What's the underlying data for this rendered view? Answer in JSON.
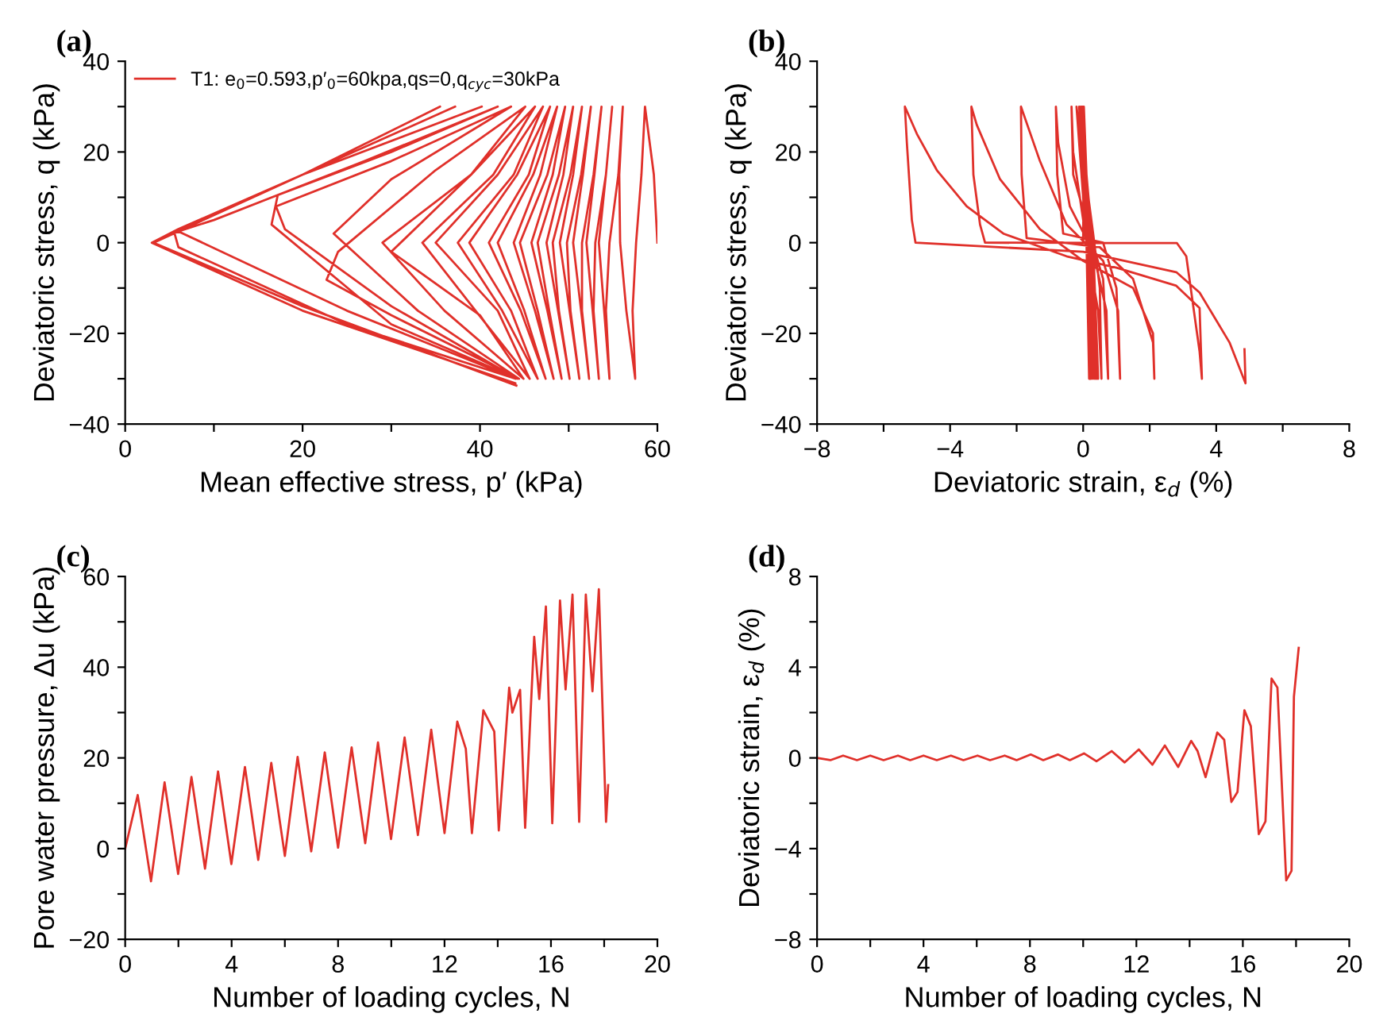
{
  "chart_data": [
    {
      "type": "line",
      "title": "(a)",
      "xlabel": "Mean effective stress, p′ (kPa)",
      "ylabel": "Deviatoric stress, q (kPa)",
      "legend": "top left",
      "grid": false,
      "xlim": [
        0,
        60
      ],
      "ylim": [
        -40,
        40
      ],
      "xticks": [
        0,
        {
          "value": 10,
          "label": null
        },
        20,
        {
          "value": 30,
          "label": null
        },
        40,
        {
          "value": 50,
          "label": null
        },
        60
      ],
      "yticks": [
        -40,
        {
          "value": -30,
          "label": null
        },
        -20,
        {
          "value": -10,
          "label": null
        },
        0,
        {
          "value": 10,
          "label": null
        },
        20,
        {
          "value": 30,
          "label": null
        },
        40
      ],
      "series": [
        {
          "name": "T1: e$_{0}$=0.593,p′$_{0}$=60kpa,qs=0,q$_{cyc}$=30kPa",
          "color": "#e0302a",
          "x": [
            60,
            59.6,
            58.6,
            58.2,
            57.6,
            57.2,
            57.5,
            56.5,
            55.8,
            55.7,
            56.1,
            55.6,
            54.6,
            54.2,
            54.6,
            54.0,
            53.4,
            54.2,
            54.9,
            54.2,
            53.0,
            52.8,
            53.4,
            52.7,
            52.0,
            52.9,
            53.7,
            52.8,
            51.5,
            51.5,
            52.3,
            51.4,
            50.5,
            51.6,
            52.5,
            51.4,
            49.8,
            50.2,
            51.2,
            50.1,
            49.0,
            50.5,
            51.5,
            50.2,
            48.2,
            48.9,
            50.1,
            48.8,
            47.5,
            49.4,
            50.5,
            48.9,
            46.5,
            47.8,
            49.2,
            47.6,
            45.8,
            48.2,
            49.6,
            47.6,
            44.5,
            46.5,
            48.3,
            46.2,
            43.8,
            46.8,
            48.7,
            46.0,
            42.0,
            45.0,
            47.4,
            44.6,
            41.0,
            45.5,
            47.9,
            44.2,
            38.8,
            43.5,
            46.5,
            42.5,
            37.5,
            43.8,
            47.1,
            42.0,
            35.0,
            42.0,
            45.6,
            39.5,
            33.5,
            41.5,
            46.2,
            39.0,
            30.0,
            40.0,
            44.9,
            36.0,
            29.0,
            39.0,
            45.1,
            35.0,
            24.0,
            22.7,
            30,
            44.4,
            33,
            23.5,
            30,
            43.5,
            30,
            17,
            18,
            30,
            44.2,
            30,
            16.5,
            17.2,
            30,
            42.0,
            27,
            10,
            6,
            25,
            44.0,
            25,
            6,
            5.5,
            20,
            40.2,
            20,
            6,
            3,
            20,
            44.0,
            20,
            3,
            20,
            37.2,
            20,
            3,
            20,
            44.0,
            20,
            3,
            20,
            35.5,
            20,
            3.2,
            20,
            44.1
          ],
          "values": [
            0,
            15,
            30,
            15,
            0,
            -15,
            -30,
            -15,
            0,
            15,
            30,
            15,
            0,
            -15,
            -30,
            -15,
            0,
            15,
            30,
            15,
            0,
            -15,
            -30,
            -15,
            0,
            15,
            30,
            15,
            0,
            -15,
            -30,
            -15,
            0,
            15,
            30,
            15,
            0,
            -15,
            -30,
            -15,
            0,
            15,
            30,
            15,
            0,
            -15,
            -30,
            -15,
            0,
            15,
            30,
            15,
            0,
            -15,
            -30,
            -15,
            0,
            15,
            30,
            15,
            0,
            -15,
            -30,
            -15,
            0,
            15,
            30,
            15,
            0,
            -15,
            -30,
            -15,
            0,
            15,
            30,
            15,
            0,
            -15,
            -30,
            -15,
            0,
            15,
            30,
            15,
            0,
            -15,
            -30,
            -15,
            0,
            15,
            30,
            15,
            -2,
            -16,
            -30,
            -15,
            0,
            15,
            30,
            16,
            -2,
            -8.2,
            -16,
            -30,
            -15,
            2,
            14,
            30,
            18,
            8,
            3,
            -14,
            -30,
            -18,
            4,
            10.5,
            20,
            30,
            18,
            5,
            2.5,
            -15,
            -30,
            -18,
            -1,
            2.5,
            15,
            30,
            15,
            3,
            0,
            -15,
            -31,
            -15,
            0,
            15,
            30,
            15,
            0,
            -15,
            -31,
            -15,
            0,
            15,
            30,
            15,
            0,
            -14,
            -31.5
          ]
        }
      ]
    },
    {
      "type": "line",
      "title": "(b)",
      "xlabel": "Deviatoric strain, ε$_{d}$ (%)",
      "ylabel": "Deviatoric stress, q (kPa)",
      "grid": false,
      "xlim": [
        -8,
        8
      ],
      "ylim": [
        -40,
        40
      ],
      "xticks": [
        -8,
        {
          "value": -6,
          "label": null
        },
        -4,
        {
          "value": -2,
          "label": null
        },
        0,
        {
          "value": 2,
          "label": null
        },
        4,
        {
          "value": 6,
          "label": null
        },
        8
      ],
      "yticks": [
        -40,
        {
          "value": -30,
          "label": null
        },
        -20,
        {
          "value": -10,
          "label": null
        },
        0,
        {
          "value": 10,
          "label": null
        },
        20,
        {
          "value": 30,
          "label": null
        },
        40
      ],
      "series": [
        {
          "color": "#e0302a",
          "x": [
            0,
            0.02,
            0.12,
            0.18,
            0.1,
            0.0,
            0.15,
            0.2,
            0.12,
            0.02,
            0.18,
            0.22,
            0.14,
            0.0,
            0.2,
            0.25,
            0.15,
            -0.02,
            0.22,
            0.3,
            0.15,
            -0.05,
            0.25,
            0.35,
            0.15,
            -0.08,
            0.28,
            0.4,
            0.12,
            -0.12,
            0.3,
            0.45,
            0.1,
            -0.2,
            0.3,
            0.5,
            0.55,
            0.45,
            0.1,
            -0.3,
            -0.35,
            -0.3,
            0.2,
            0.6,
            0.75,
            0.7,
            0.3,
            -0.4,
            -0.75,
            -0.82,
            -0.78,
            -0.6,
            0.6,
            1.0,
            1.11,
            1.05,
            0.6,
            -0.5,
            -1.3,
            -1.87,
            -1.85,
            -1.7,
            0.5,
            1.5,
            2.1,
            2.14,
            2.1,
            1.5,
            0.0,
            -1.3,
            -2.5,
            -3.2,
            -3.36,
            -3.3,
            -3.1,
            -2.95,
            2.82,
            3.1,
            3.5,
            3.57,
            3.5,
            2.8,
            1.0,
            -0.5,
            -2.4,
            -3.5,
            -4.4,
            -5.0,
            -5.36,
            -5.3,
            -5.15,
            -5.04,
            0,
            2.8,
            3.5,
            4.4,
            4.88,
            4.85
          ],
          "values": [
            0,
            30,
            0,
            -30,
            0,
            30,
            0,
            -30,
            0,
            30,
            0,
            -30,
            0,
            30,
            0,
            -30,
            0,
            30,
            0,
            -30,
            0,
            30,
            0,
            -30,
            0,
            30,
            0,
            -30,
            0,
            30,
            0,
            -30,
            0,
            30,
            2,
            -10,
            -30,
            -15,
            0,
            20,
            30,
            15,
            2,
            -8,
            -30,
            -15,
            -2,
            8,
            22,
            30,
            15,
            2,
            0,
            -10,
            -30,
            -15,
            -4,
            4,
            18,
            30,
            15,
            1,
            -1,
            -8,
            -22,
            -30,
            -20,
            -10,
            -4,
            3,
            14,
            26,
            30,
            15,
            4,
            0,
            -0.1,
            -3,
            -24,
            -30,
            -14.4,
            -9.5,
            -5.5,
            -3,
            2,
            8,
            16,
            24,
            30,
            22,
            5,
            0,
            -2,
            -6.5,
            -11,
            -22,
            -31,
            -23.5
          ]
        }
      ]
    },
    {
      "type": "line",
      "title": "(c)",
      "xlabel": "Number of loading cycles, N",
      "ylabel": "Pore water pressure, Δu (kPa)",
      "grid": false,
      "xlim": [
        0,
        20
      ],
      "ylim": [
        -20,
        60
      ],
      "xticks": [
        0,
        {
          "value": 2,
          "label": null
        },
        4,
        {
          "value": 6,
          "label": null
        },
        8,
        {
          "value": 10,
          "label": null
        },
        12,
        {
          "value": 14,
          "label": null
        },
        16,
        {
          "value": 18,
          "label": null
        },
        20
      ],
      "yticks": [
        -20,
        {
          "value": -10,
          "label": null
        },
        0,
        {
          "value": 10,
          "label": null
        },
        20,
        {
          "value": 30,
          "label": null
        },
        40,
        {
          "value": 50,
          "label": null
        },
        60
      ],
      "series": [
        {
          "color": "#e0302a",
          "x": [
            0,
            0.47,
            0.97,
            1.48,
            1.99,
            2.49,
            3.0,
            3.49,
            3.99,
            4.5,
            5.0,
            5.49,
            6.0,
            6.48,
            6.99,
            7.5,
            8.0,
            8.51,
            9.02,
            9.5,
            9.99,
            10.5,
            11.0,
            11.5,
            12.0,
            12.48,
            12.8,
            13.03,
            13.46,
            13.87,
            14.04,
            14.43,
            14.55,
            14.84,
            15.03,
            15.37,
            15.56,
            15.81,
            16.05,
            16.34,
            16.55,
            16.81,
            17.06,
            17.31,
            17.56,
            17.8,
            18.07,
            18.15
          ],
          "values": [
            0,
            11.8,
            -7.2,
            14.6,
            -5.6,
            15.8,
            -4.4,
            17,
            -3.4,
            18,
            -2.5,
            18.9,
            -1.6,
            20.2,
            -0.6,
            21.2,
            0.2,
            22.3,
            1.2,
            23.4,
            2.1,
            24.5,
            3,
            26.2,
            3.4,
            28,
            22,
            3.4,
            30.5,
            25.8,
            4,
            35.5,
            30,
            35,
            4.6,
            46.7,
            33,
            53.4,
            5.6,
            54.7,
            35.1,
            56,
            5.9,
            56,
            34.7,
            57.2,
            5.9,
            14
          ]
        }
      ]
    },
    {
      "type": "line",
      "title": "(d)",
      "xlabel": "Number of loading cycles, N",
      "ylabel": "Deviatoric strain, ε$_{d}$ (%)",
      "grid": false,
      "xlim": [
        0,
        20
      ],
      "ylim": [
        -8,
        8
      ],
      "xticks": [
        0,
        {
          "value": 2,
          "label": null
        },
        4,
        {
          "value": 6,
          "label": null
        },
        8,
        {
          "value": 10,
          "label": null
        },
        12,
        {
          "value": 14,
          "label": null
        },
        16,
        {
          "value": 18,
          "label": null
        },
        20
      ],
      "yticks": [
        -8,
        {
          "value": -6,
          "label": null
        },
        -4,
        {
          "value": -2,
          "label": null
        },
        0,
        {
          "value": 2,
          "label": null
        },
        4,
        {
          "value": 6,
          "label": null
        },
        8
      ],
      "series": [
        {
          "color": "#e0302a",
          "x": [
            0,
            0.5,
            0.98,
            1.5,
            2.0,
            2.5,
            3.04,
            3.5,
            4.0,
            4.5,
            5.03,
            5.5,
            6.03,
            6.5,
            7.05,
            7.5,
            8.03,
            8.5,
            9.05,
            9.5,
            10.03,
            10.5,
            11.07,
            11.56,
            12.09,
            12.6,
            13.07,
            13.57,
            14.06,
            14.3,
            14.6,
            15.04,
            15.3,
            15.57,
            15.8,
            16.06,
            16.3,
            16.6,
            16.85,
            17.08,
            17.3,
            17.63,
            17.83,
            17.92,
            18.1
          ],
          "values": [
            0,
            -0.1,
            0.1,
            -0.1,
            0.1,
            -0.1,
            0.1,
            -0.1,
            0.1,
            -0.1,
            0.1,
            -0.1,
            0.1,
            -0.1,
            0.1,
            -0.1,
            0.15,
            -0.1,
            0.15,
            -0.1,
            0.2,
            -0.15,
            0.3,
            -0.2,
            0.37,
            -0.3,
            0.55,
            -0.4,
            0.75,
            0.3,
            -0.85,
            1.12,
            0.8,
            -1.94,
            -1.5,
            2.1,
            1.4,
            -3.36,
            -2.8,
            3.5,
            3.1,
            -5.4,
            -4.98,
            2.7,
            4.85
          ]
        }
      ]
    }
  ]
}
